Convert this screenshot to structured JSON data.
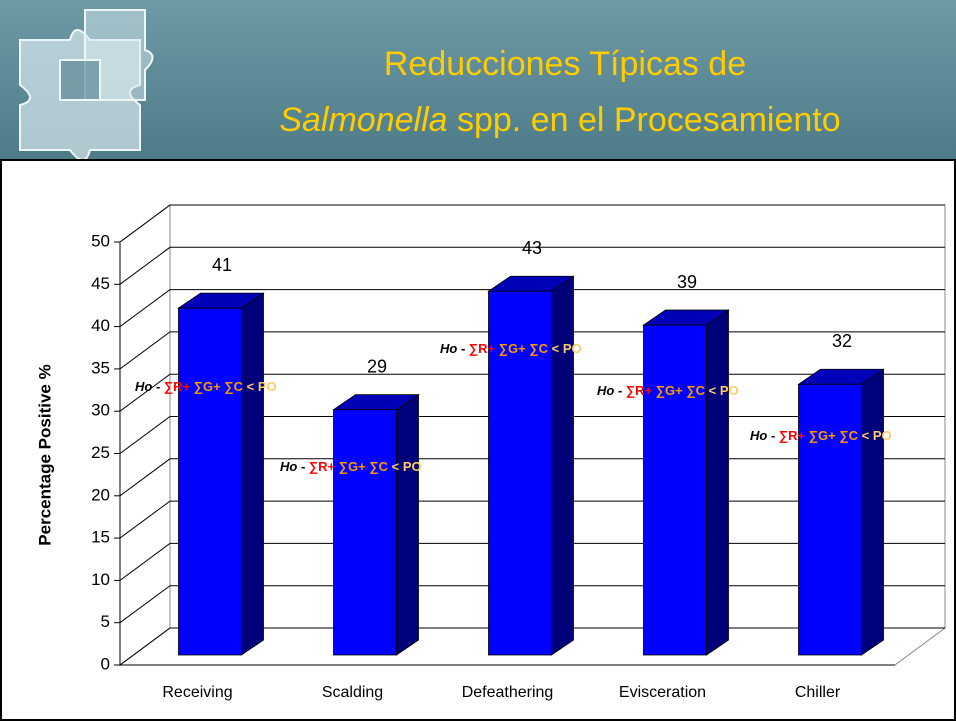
{
  "title_line1": "Reducciones Típicas de",
  "title_italic": "Salmonella",
  "title_rest": " spp. en el Procesamiento",
  "chart_data": {
    "type": "bar",
    "y_label": "Percentage Positive %",
    "categories": [
      "Receiving",
      "Scalding",
      "Defeathering",
      "Evisceration",
      "Chiller"
    ],
    "values": [
      41,
      29,
      43,
      39,
      32
    ],
    "color": "#0000ff",
    "ylim": [
      0,
      50
    ],
    "yticks": [
      0,
      5,
      10,
      15,
      20,
      25,
      30,
      35,
      40,
      45,
      50
    ],
    "grid": true,
    "annotation_parts": [
      {
        "text": "Ho",
        "color": "#000000"
      },
      {
        "text": " - ",
        "color": "#000000"
      },
      {
        "text": "∑R+",
        "color": "#ff0000"
      },
      {
        "text": " ∑G+",
        "color": "#ff9900"
      },
      {
        "text": " ∑C",
        "color": "#ff9900"
      },
      {
        "text": " < PO",
        "color": "#ffcc66"
      }
    ]
  }
}
